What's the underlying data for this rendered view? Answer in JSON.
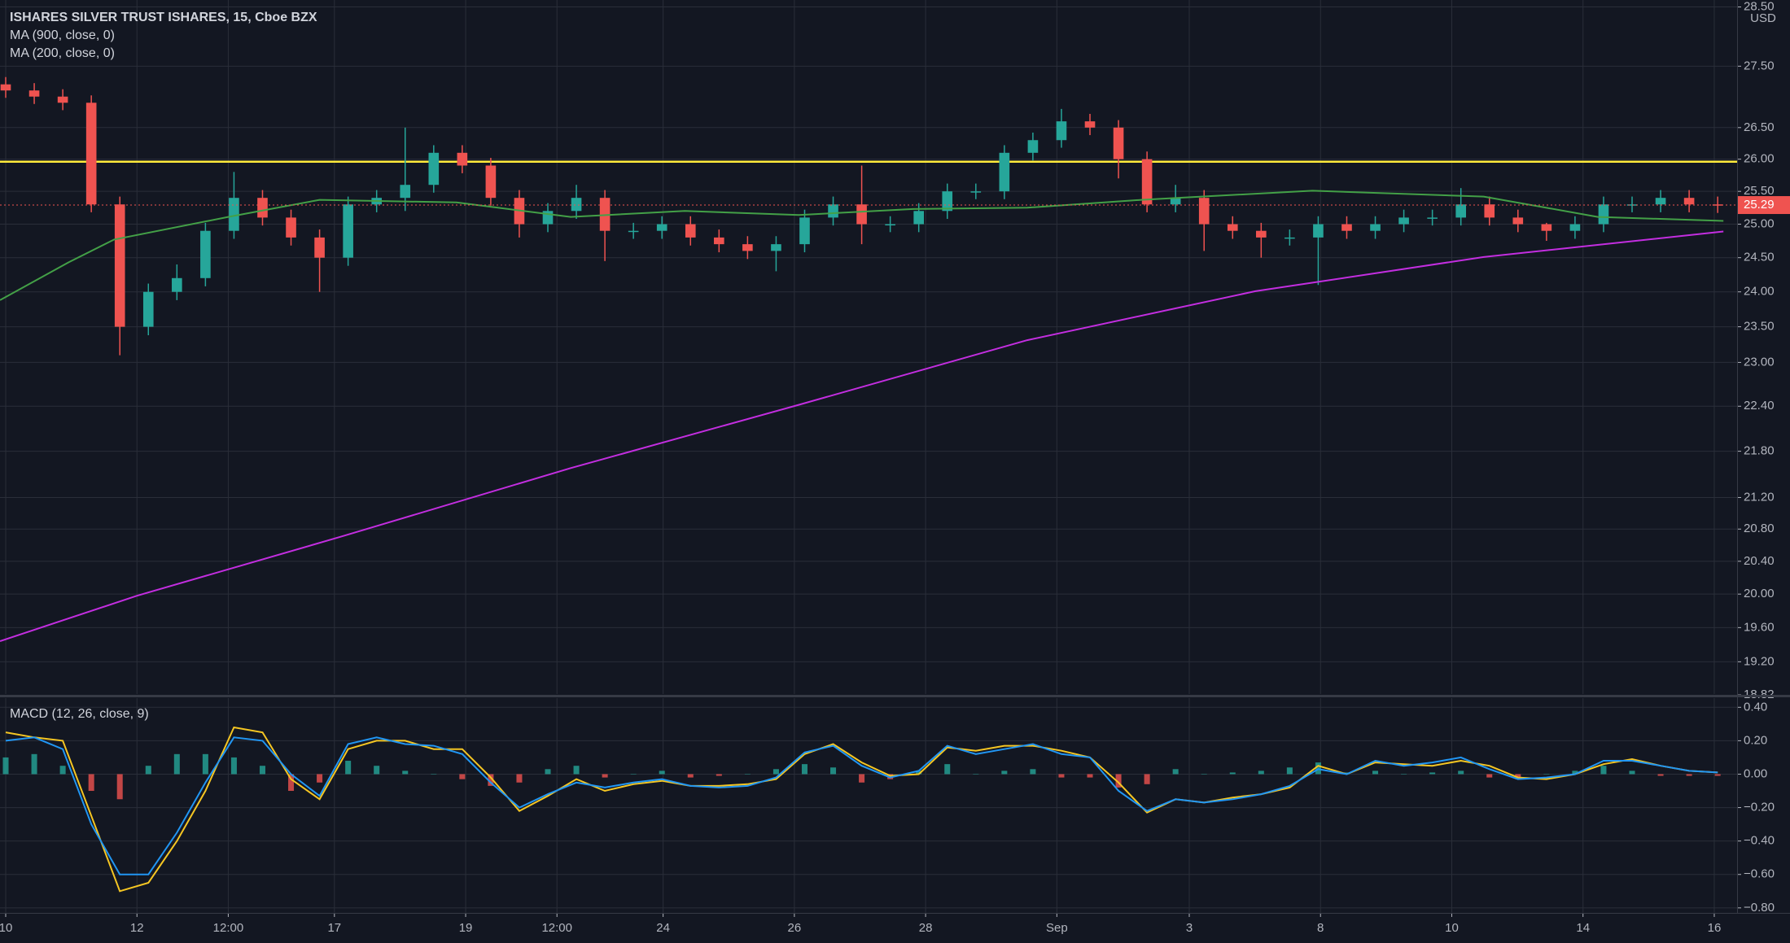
{
  "chart_data": [
    {
      "type": "candlestick",
      "title": "ISHARES SILVER TRUST ISHARES, 15, Cboe BZX",
      "currency": "USD",
      "log_scale": true,
      "grid": true,
      "up_color": "#26a69a",
      "down_color": "#ef5350",
      "open": [
        27.2,
        27.1,
        27.0,
        26.9,
        25.3,
        23.5,
        24.0,
        24.2,
        24.9,
        25.4,
        25.1,
        24.8,
        24.5,
        25.3,
        25.4,
        25.6,
        26.1,
        25.9,
        25.4,
        25.0,
        25.2,
        25.4,
        24.9,
        24.9,
        25.0,
        24.8,
        24.7,
        24.6,
        24.7,
        25.1,
        25.3,
        25.0,
        25.0,
        25.2,
        25.5,
        25.5,
        26.1,
        26.3,
        26.6,
        26.5,
        26.0,
        25.3,
        25.4,
        25.0,
        24.9,
        24.8,
        24.8,
        25.0,
        24.9,
        25.0,
        25.1,
        25.1,
        25.3,
        25.1,
        25.0,
        24.9,
        25.0,
        25.3,
        25.3,
        25.4,
        25.3
      ],
      "high": [
        27.32,
        27.22,
        27.12,
        27.02,
        25.42,
        24.12,
        24.4,
        25.02,
        25.8,
        25.52,
        25.22,
        24.92,
        25.42,
        25.52,
        26.5,
        26.22,
        26.22,
        26.02,
        25.52,
        25.32,
        25.6,
        25.52,
        25.02,
        25.12,
        25.12,
        24.92,
        24.82,
        24.82,
        25.22,
        25.42,
        25.9,
        25.12,
        25.32,
        25.62,
        25.62,
        26.22,
        26.42,
        26.8,
        26.72,
        26.62,
        26.12,
        25.6,
        25.52,
        25.12,
        25.02,
        24.92,
        25.12,
        25.12,
        25.12,
        25.22,
        25.22,
        25.55,
        25.42,
        25.22,
        25.02,
        25.12,
        25.42,
        25.42,
        25.52,
        25.52,
        25.42
      ],
      "low": [
        26.98,
        26.88,
        26.78,
        25.18,
        23.1,
        23.38,
        23.88,
        24.08,
        24.78,
        24.98,
        24.68,
        24.0,
        24.38,
        25.18,
        25.2,
        25.48,
        25.78,
        25.28,
        24.8,
        24.88,
        25.08,
        24.45,
        24.78,
        24.78,
        24.68,
        24.58,
        24.48,
        24.3,
        24.58,
        24.98,
        24.7,
        24.88,
        24.88,
        25.08,
        25.38,
        25.38,
        25.98,
        26.18,
        26.38,
        25.7,
        25.18,
        25.18,
        24.6,
        24.78,
        24.5,
        24.68,
        24.1,
        24.78,
        24.78,
        24.88,
        24.98,
        24.98,
        24.98,
        24.88,
        24.75,
        24.78,
        24.88,
        25.18,
        25.18,
        25.18,
        25.17
      ],
      "close": [
        27.1,
        27.0,
        26.9,
        25.3,
        23.5,
        24.0,
        24.2,
        24.9,
        25.4,
        25.1,
        24.8,
        24.5,
        25.3,
        25.4,
        25.6,
        26.1,
        25.9,
        25.4,
        25.0,
        25.2,
        25.4,
        24.9,
        24.9,
        25.0,
        24.8,
        24.7,
        24.6,
        24.7,
        25.1,
        25.3,
        25.0,
        25.0,
        25.2,
        25.5,
        25.5,
        26.1,
        26.3,
        26.6,
        26.5,
        26.0,
        25.3,
        25.4,
        25.0,
        24.9,
        24.8,
        24.8,
        25.0,
        24.9,
        25.0,
        25.1,
        25.1,
        25.3,
        25.1,
        25.0,
        24.9,
        25.0,
        25.3,
        25.3,
        25.4,
        25.3,
        25.29
      ],
      "series": [
        {
          "name": "MA (900, close, 0)",
          "color": "#c32ee0",
          "x": [
            -0.2,
            4.6,
            11.8,
            19.8,
            27.8,
            35.8,
            43.8,
            51.8,
            60.2
          ],
          "values": [
            19.44,
            19.98,
            20.71,
            21.58,
            22.42,
            23.31,
            24.01,
            24.51,
            24.89
          ]
        },
        {
          "name": "MA (200, close, 0)",
          "color": "#43a047",
          "x": [
            -0.2,
            2.2,
            3.8,
            7.8,
            11,
            15.8,
            19.8,
            23.8,
            27.8,
            31.8,
            35.8,
            39.8,
            45.8,
            51.8,
            55.8,
            60.2
          ],
          "values": [
            23.88,
            24.43,
            24.77,
            25.11,
            25.37,
            25.33,
            25.11,
            25.2,
            25.14,
            25.23,
            25.25,
            25.37,
            25.51,
            25.42,
            25.11,
            25.05
          ]
        }
      ],
      "hline": {
        "value": 25.96,
        "color": "#ffeb3b"
      },
      "last_price": 25.29,
      "last_color": "#ef5350",
      "xlim": [
        -0.2,
        60.68
      ],
      "xticks": [
        {
          "value": 0,
          "label": "10"
        },
        {
          "value": 4.6,
          "label": "12"
        },
        {
          "value": 7.8,
          "label": "12:00"
        },
        {
          "value": 11.52,
          "label": "17"
        },
        {
          "value": 16.12,
          "label": "19"
        },
        {
          "value": 19.32,
          "label": "12:00"
        },
        {
          "value": 23.04,
          "label": "24"
        },
        {
          "value": 27.64,
          "label": "26"
        },
        {
          "value": 32.24,
          "label": "28"
        },
        {
          "value": 36.84,
          "label": "Sep"
        },
        {
          "value": 41.48,
          "label": "3"
        },
        {
          "value": 46.08,
          "label": "8"
        },
        {
          "value": 50.68,
          "label": "10"
        },
        {
          "value": 55.28,
          "label": "14"
        },
        {
          "value": 59.88,
          "label": "16"
        }
      ],
      "ylim": [
        18.83,
        28.62
      ],
      "yticks": [
        {
          "value": 28.5,
          "label": "28.50"
        },
        {
          "value": 27.5,
          "label": "27.50"
        },
        {
          "value": 26.5,
          "label": "26.50"
        },
        {
          "value": 26,
          "label": "26.00"
        },
        {
          "value": 25.5,
          "label": "25.50"
        },
        {
          "value": 25,
          "label": "25.00"
        },
        {
          "value": 24.5,
          "label": "24.50"
        },
        {
          "value": 24,
          "label": "24.00"
        },
        {
          "value": 23.5,
          "label": "23.50"
        },
        {
          "value": 23,
          "label": "23.00"
        },
        {
          "value": 22.4,
          "label": "22.40"
        },
        {
          "value": 21.8,
          "label": "21.80"
        },
        {
          "value": 21.2,
          "label": "21.20"
        },
        {
          "value": 20.8,
          "label": "20.80"
        },
        {
          "value": 20.4,
          "label": "20.40"
        },
        {
          "value": 20,
          "label": "20.00"
        },
        {
          "value": 19.6,
          "label": "19.60"
        },
        {
          "value": 19.2,
          "label": "19.20"
        },
        {
          "value": 18.82,
          "label": "18.82"
        }
      ]
    },
    {
      "type": "line",
      "title": "MACD (12, 26, close, 9)",
      "up_color": "#26a69a",
      "down_color": "#ef5350",
      "series": [
        {
          "color": "#f5c623",
          "values": [
            0.25,
            0.22,
            0.2,
            -0.25,
            -0.7,
            -0.65,
            -0.4,
            -0.1,
            0.28,
            0.25,
            -0.03,
            -0.15,
            0.15,
            0.2,
            0.2,
            0.15,
            0.15,
            -0.02,
            -0.22,
            -0.13,
            -0.03,
            -0.1,
            -0.06,
            -0.04,
            -0.07,
            -0.07,
            -0.06,
            -0.03,
            0.12,
            0.18,
            0.07,
            -0.01,
            0.0,
            0.16,
            0.14,
            0.17,
            0.17,
            0.14,
            0.1,
            -0.05,
            -0.23,
            -0.15,
            -0.17,
            -0.14,
            -0.12,
            -0.08,
            0.05,
            0.0,
            0.07,
            0.06,
            0.05,
            0.08,
            0.05,
            -0.02,
            -0.03,
            0.0,
            0.06,
            0.09,
            0.05,
            0.02,
            0.01
          ]
        },
        {
          "color": "#2196f3",
          "values": [
            0.2,
            0.22,
            0.15,
            -0.3,
            -0.6,
            -0.6,
            -0.35,
            -0.05,
            0.22,
            0.2,
            0.0,
            -0.13,
            0.18,
            0.22,
            0.18,
            0.17,
            0.12,
            -0.05,
            -0.2,
            -0.12,
            -0.05,
            -0.08,
            -0.05,
            -0.03,
            -0.07,
            -0.08,
            -0.07,
            -0.02,
            0.13,
            0.17,
            0.05,
            -0.02,
            0.02,
            0.17,
            0.12,
            0.15,
            0.18,
            0.12,
            0.1,
            -0.1,
            -0.22,
            -0.15,
            -0.17,
            -0.15,
            -0.12,
            -0.07,
            0.03,
            0.0,
            0.08,
            0.05,
            0.07,
            0.1,
            0.03,
            -0.03,
            -0.02,
            0.0,
            0.08,
            0.08,
            0.05,
            0.02,
            0.01
          ]
        },
        {
          "type": "bar",
          "values": [
            0.1,
            0.12,
            0.05,
            -0.1,
            -0.15,
            0.05,
            0.12,
            0.12,
            0.1,
            0.05,
            -0.1,
            -0.05,
            0.08,
            0.05,
            0.02,
            0.0,
            -0.03,
            -0.07,
            -0.05,
            0.03,
            0.05,
            -0.02,
            0.0,
            0.02,
            -0.02,
            -0.01,
            0.0,
            0.03,
            0.06,
            0.04,
            -0.05,
            -0.03,
            0.02,
            0.06,
            0.0,
            0.02,
            0.03,
            -0.02,
            -0.02,
            -0.08,
            -0.06,
            0.03,
            0.0,
            0.01,
            0.02,
            0.04,
            0.07,
            0.01,
            0.02,
            0.0,
            0.01,
            0.02,
            -0.02,
            -0.03,
            0.0,
            0.02,
            0.05,
            0.02,
            -0.01,
            -0.01,
            -0.01
          ]
        }
      ],
      "ylim": [
        -0.83,
        0.455
      ],
      "yticks": [
        {
          "value": 0.4,
          "label": "0.40"
        },
        {
          "value": 0.2,
          "label": "0.20"
        },
        {
          "value": 0,
          "label": "0.00"
        },
        {
          "value": -0.2,
          "label": "−0.20"
        },
        {
          "value": -0.4,
          "label": "−0.40"
        },
        {
          "value": -0.6,
          "label": "−0.60"
        },
        {
          "value": -0.8,
          "label": "−0.80"
        }
      ]
    }
  ]
}
